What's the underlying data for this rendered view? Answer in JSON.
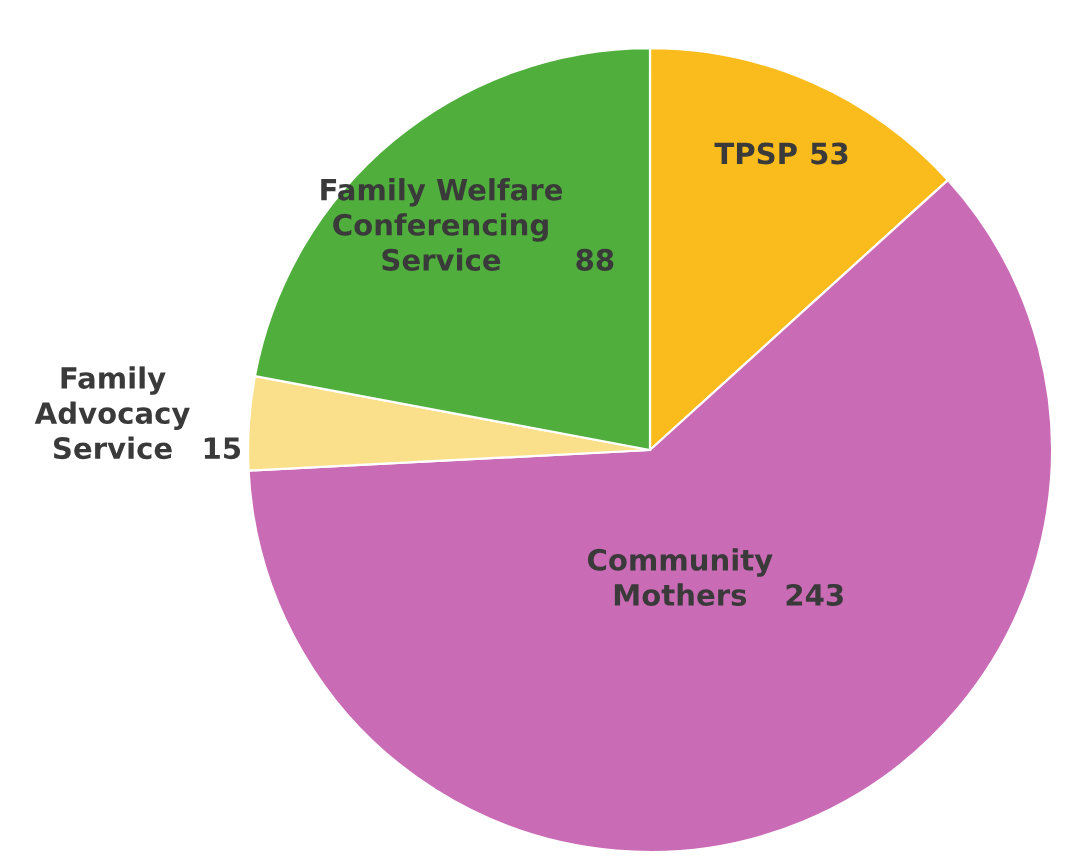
{
  "chart_data": {
    "type": "pie",
    "categories": [
      "TPSP",
      "Community\nMothers",
      "Family\nAdvocacy\nService",
      "Family Welfare\nConferencing\nService"
    ],
    "values": [
      53,
      243,
      15,
      88
    ],
    "colors": [
      "#f9bc1c",
      "#c96bb5",
      "#fbe08c",
      "#4fae3c"
    ],
    "data_labels": true
  }
}
